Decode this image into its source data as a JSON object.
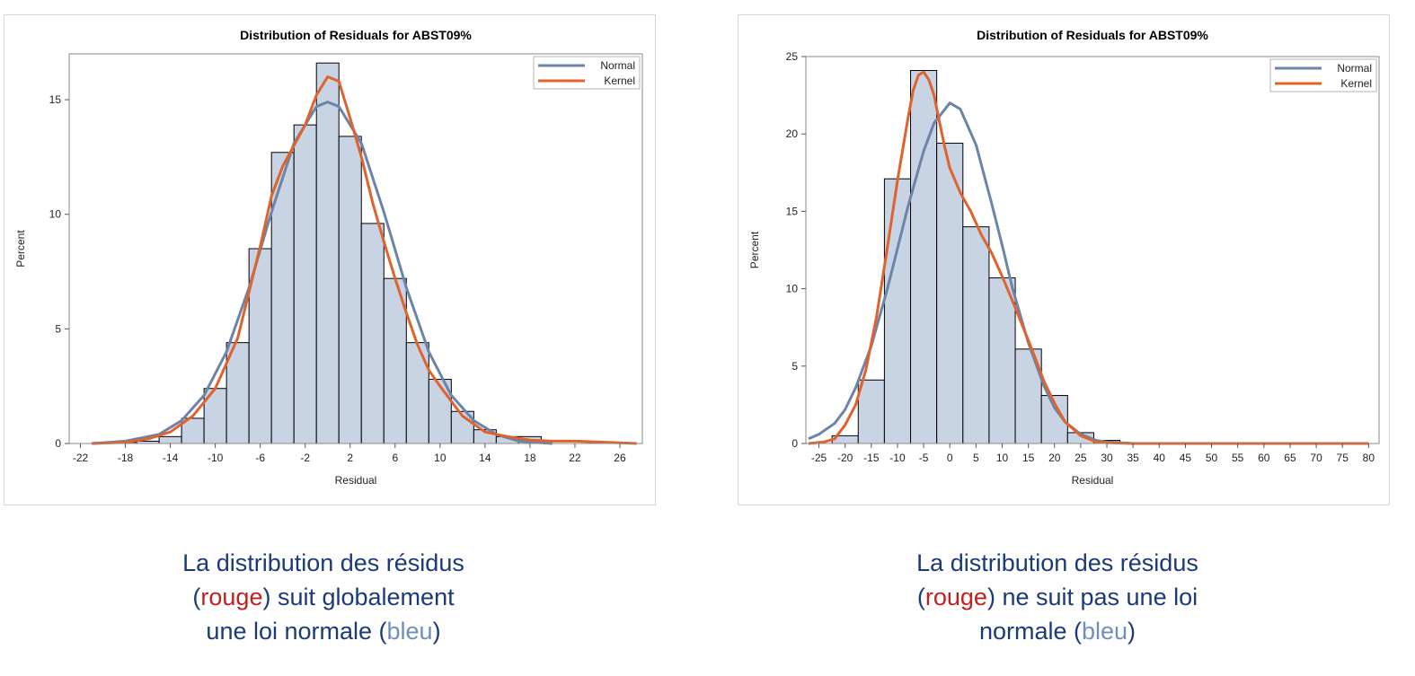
{
  "colors": {
    "normal": "#6b84a8",
    "kernel": "#e0622c",
    "bar_fill": "#c8d3e4",
    "bar_stroke": "#000000",
    "caption": "#1b3a7a",
    "rouge": "#c0201e",
    "bleu": "#6f8fc0"
  },
  "chart_data": [
    {
      "type": "bar",
      "title": "Distribution of Residuals for ABST09%",
      "xlabel": "Residual",
      "ylabel": "Percent",
      "xlim": [
        -23,
        28
      ],
      "ylim": [
        0,
        17
      ],
      "xticks": [
        -22,
        -18,
        -14,
        -10,
        -6,
        -2,
        2,
        6,
        10,
        14,
        18,
        22,
        26
      ],
      "yticks": [
        0,
        5,
        10,
        15
      ],
      "bin_width": 2,
      "bin_starts": [
        -19,
        -17,
        -15,
        -13,
        -11,
        -9,
        -7,
        -5,
        -3,
        -1,
        1,
        3,
        5,
        7,
        9,
        11,
        13,
        15,
        17
      ],
      "values": [
        0.05,
        0.1,
        0.3,
        1.1,
        2.4,
        4.4,
        8.5,
        12.7,
        13.9,
        16.6,
        13.4,
        9.6,
        7.2,
        4.4,
        2.8,
        1.4,
        0.6,
        0.3,
        0.3
      ],
      "series": [
        {
          "name": "Normal",
          "x": [
            -21,
            -18,
            -15,
            -13,
            -11,
            -9,
            -7,
            -5,
            -3,
            -1,
            0,
            1,
            3,
            5,
            7,
            9,
            11,
            13,
            15,
            17,
            19,
            20
          ],
          "y": [
            0,
            0.1,
            0.4,
            1.0,
            2.1,
            4.0,
            6.8,
            10.1,
            13.1,
            14.7,
            14.9,
            14.7,
            13.1,
            10.1,
            6.8,
            4.0,
            2.1,
            1.0,
            0.4,
            0.1,
            0.03,
            0
          ]
        },
        {
          "name": "Kernel",
          "x": [
            -21,
            -18,
            -16,
            -14,
            -12,
            -10,
            -8,
            -6,
            -5,
            -4,
            -3,
            -2,
            -1,
            0,
            1,
            2,
            3,
            4,
            5,
            6,
            7,
            8,
            9,
            10,
            12,
            14,
            16,
            18,
            20,
            22,
            25,
            27.5
          ],
          "y": [
            0,
            0.05,
            0.2,
            0.5,
            1.2,
            2.4,
            4.6,
            8.6,
            10.8,
            12.1,
            13.0,
            13.9,
            15.2,
            16.0,
            15.8,
            14.2,
            12.5,
            10.5,
            8.8,
            7.2,
            5.7,
            4.3,
            3.2,
            2.5,
            1.2,
            0.5,
            0.3,
            0.15,
            0.1,
            0.1,
            0.05,
            0
          ]
        }
      ],
      "legend": "top-right"
    },
    {
      "type": "bar",
      "title": "Distribution of Residuals for ABST09%",
      "xlabel": "Residual",
      "ylabel": "Percent",
      "xlim": [
        -27.5,
        82
      ],
      "ylim": [
        0,
        25
      ],
      "xticks": [
        -25,
        -20,
        -15,
        -10,
        -5,
        0,
        5,
        10,
        15,
        20,
        25,
        30,
        35,
        40,
        45,
        50,
        55,
        60,
        65,
        70,
        75,
        80
      ],
      "yticks": [
        0,
        5,
        10,
        15,
        20,
        25
      ],
      "bin_width": 5,
      "bin_starts": [
        -22.5,
        -17.5,
        -12.5,
        -7.5,
        -2.5,
        2.5,
        7.5,
        12.5,
        17.5,
        22.5,
        27.5
      ],
      "values": [
        0.5,
        4.1,
        17.1,
        24.1,
        19.4,
        14.0,
        10.7,
        6.1,
        3.1,
        0.7,
        0.2
      ],
      "series": [
        {
          "name": "Normal",
          "x": [
            -27,
            -25,
            -22,
            -20,
            -18,
            -15,
            -12,
            -10,
            -8,
            -5,
            -3,
            0,
            2,
            5,
            8,
            10,
            12,
            15,
            18,
            20,
            22,
            25,
            28,
            30,
            35,
            40
          ],
          "y": [
            0.3,
            0.6,
            1.3,
            2.2,
            3.6,
            6.3,
            9.9,
            12.6,
            15.3,
            18.9,
            20.7,
            22.0,
            21.6,
            19.3,
            15.5,
            12.8,
            10.0,
            6.5,
            3.7,
            2.3,
            1.4,
            0.6,
            0.2,
            0.1,
            0,
            0
          ]
        },
        {
          "name": "Kernel",
          "x": [
            -27,
            -24,
            -22,
            -20,
            -18,
            -16,
            -14,
            -12,
            -10,
            -8,
            -7,
            -6,
            -5,
            -4,
            -3,
            -2,
            -1,
            0,
            2,
            4,
            6,
            8,
            10,
            12,
            14,
            16,
            18,
            20,
            22,
            25,
            28,
            30,
            35,
            80
          ],
          "y": [
            0,
            0.1,
            0.3,
            1.2,
            2.5,
            4.8,
            8.2,
            12.5,
            17.0,
            21.0,
            22.8,
            23.8,
            24.0,
            23.5,
            22.5,
            20.8,
            19.2,
            17.8,
            16.2,
            15.0,
            13.5,
            12.3,
            10.8,
            9.2,
            7.5,
            5.8,
            4.0,
            2.6,
            1.4,
            0.5,
            0.1,
            0.05,
            0,
            0
          ]
        }
      ],
      "legend": "top-right"
    }
  ],
  "captions": [
    {
      "line1": "La distribution des résidus",
      "open": "(",
      "rouge": "rouge",
      "line2_rest": ") suit globalement",
      "line3_start": "une loi normale (",
      "bleu": "bleu",
      "close": ")"
    },
    {
      "line1": "La distribution des résidus",
      "open": "(",
      "rouge": "rouge",
      "line2_rest": ") ne suit pas une loi",
      "line3_start": "normale (",
      "bleu": "bleu",
      "close": ")"
    }
  ]
}
